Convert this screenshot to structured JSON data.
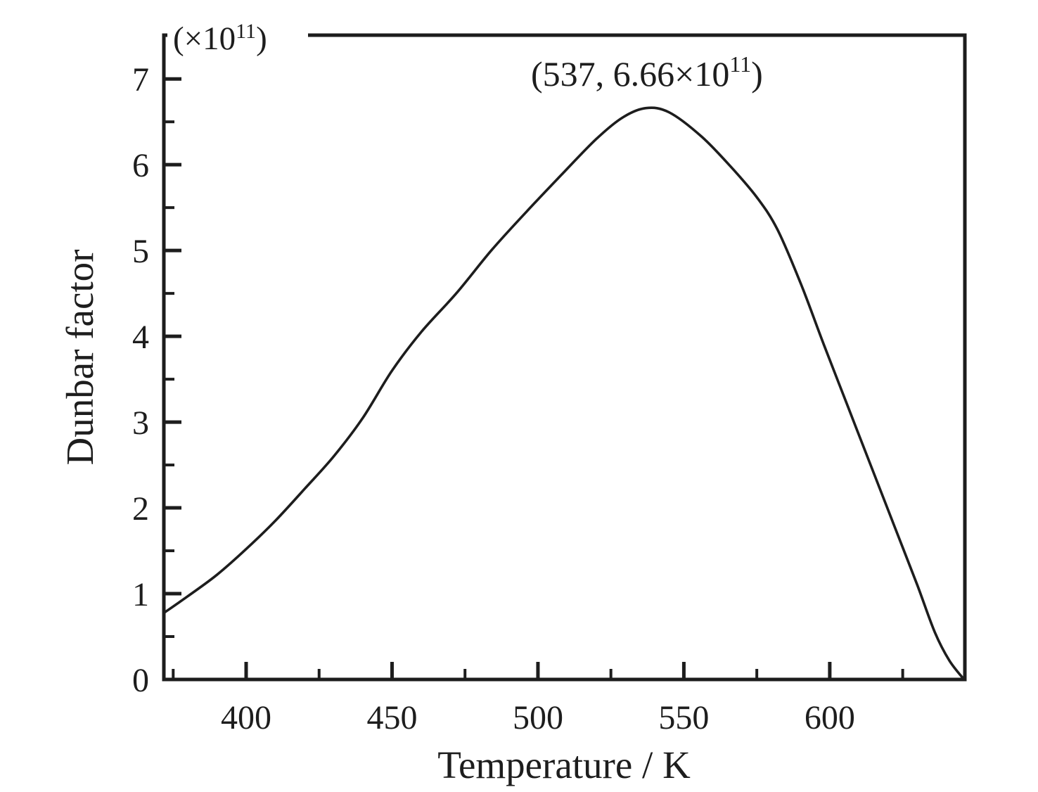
{
  "figure": {
    "background_color": "#ffffff",
    "ink_color": "#1d1d1d"
  },
  "chart_data": {
    "type": "line",
    "title": "",
    "xlabel": "Temperature / K",
    "ylabel": "Dunbar factor",
    "y_scale_label": {
      "prefix": "(×10",
      "sup": "11",
      "suffix": ")"
    },
    "peak_annotation": {
      "prefix": "(537, 6.66×10",
      "sup": "11",
      "suffix": ")",
      "peak_x": 537,
      "peak_y_e11": 6.66
    },
    "x_range": [
      371.8,
      646.3
    ],
    "y_range": [
      0,
      7.51
    ],
    "x_major_ticks": [
      400,
      450,
      500,
      550,
      600
    ],
    "x_minor_ticks": [
      375,
      425,
      475,
      525,
      575,
      625
    ],
    "y_major_ticks": [
      0,
      1,
      2,
      3,
      4,
      5,
      6,
      7
    ],
    "y_minor_ticks": [
      0.5,
      1.5,
      2.5,
      3.5,
      4.5,
      5.5,
      6.5
    ],
    "grid": false,
    "legend": "none",
    "series": [
      {
        "name": "Dunbar factor (×10^11)",
        "points": [
          [
            372,
            0.78
          ],
          [
            380,
            0.97
          ],
          [
            390,
            1.22
          ],
          [
            400,
            1.52
          ],
          [
            410,
            1.85
          ],
          [
            420,
            2.22
          ],
          [
            430,
            2.6
          ],
          [
            440,
            3.05
          ],
          [
            450,
            3.6
          ],
          [
            460,
            4.05
          ],
          [
            472,
            4.5
          ],
          [
            484,
            5.0
          ],
          [
            496,
            5.45
          ],
          [
            508,
            5.88
          ],
          [
            520,
            6.3
          ],
          [
            529,
            6.55
          ],
          [
            537,
            6.66
          ],
          [
            545,
            6.61
          ],
          [
            556,
            6.33
          ],
          [
            566,
            5.98
          ],
          [
            575,
            5.62
          ],
          [
            582,
            5.25
          ],
          [
            590,
            4.62
          ],
          [
            598,
            3.9
          ],
          [
            606,
            3.2
          ],
          [
            614,
            2.5
          ],
          [
            622,
            1.8
          ],
          [
            630,
            1.1
          ],
          [
            636,
            0.55
          ],
          [
            641,
            0.22
          ],
          [
            646,
            0.0
          ]
        ]
      }
    ]
  }
}
